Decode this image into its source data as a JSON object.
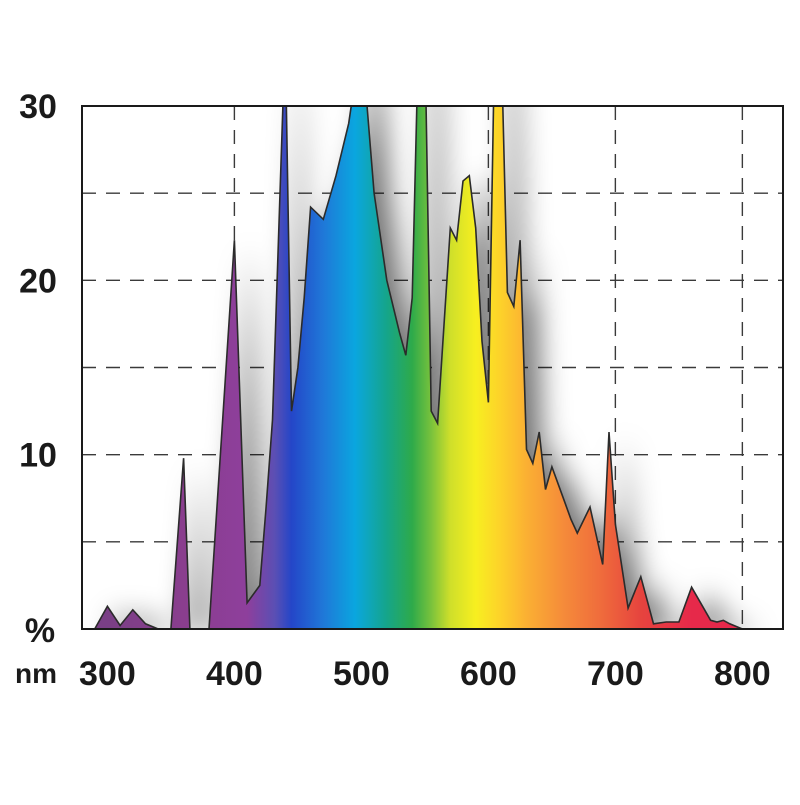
{
  "chart_data": {
    "type": "area",
    "title": "",
    "xlabel": "",
    "ylabel": "",
    "y_unit_label": "%",
    "x_unit_label": "nm",
    "xlim": [
      280,
      832
    ],
    "ylim": [
      0,
      30
    ],
    "x_ticks": [
      300,
      400,
      500,
      600,
      700,
      800
    ],
    "y_ticks": [
      10,
      20,
      30
    ],
    "grid": true,
    "legend": "none",
    "series": [
      {
        "x": [
          280,
          290,
          300,
          310,
          320,
          330,
          340,
          350,
          360,
          365,
          370,
          380,
          400,
          410,
          420,
          425,
          430,
          440,
          445,
          450,
          455,
          460,
          470,
          480,
          490,
          500,
          510,
          520,
          530,
          535,
          540,
          545,
          550,
          555,
          560,
          570,
          575,
          580,
          585,
          590,
          595,
          600,
          605,
          610,
          615,
          620,
          625,
          630,
          635,
          640,
          645,
          650,
          660,
          665,
          670,
          680,
          690,
          695,
          700,
          710,
          720,
          730,
          740,
          750,
          760,
          775,
          780,
          785,
          790,
          800,
          830
        ],
        "y": [
          0,
          0,
          1.3,
          0.2,
          1.1,
          0.3,
          0,
          0,
          9.8,
          0,
          0,
          0,
          22.3,
          1.5,
          2.5,
          7,
          12,
          34,
          12.5,
          15,
          19,
          24.2,
          23.5,
          26,
          29,
          34,
          25,
          20,
          17,
          15.7,
          19,
          34,
          34,
          12.5,
          11.8,
          23,
          22.3,
          25.7,
          26,
          23,
          16.5,
          13,
          34,
          34,
          19.3,
          18.5,
          22.3,
          10.3,
          9.5,
          11.3,
          8,
          9.3,
          7.3,
          6.3,
          5.5,
          7,
          3.7,
          11.3,
          6,
          1.2,
          3,
          0.3,
          0.4,
          0.4,
          2.4,
          0.5,
          0.4,
          0.5,
          0.3,
          0,
          0
        ]
      }
    ],
    "colors": {
      "gradient": [
        {
          "x": 300,
          "color": "#7a3f86"
        },
        {
          "x": 360,
          "color": "#8a3e8e"
        },
        {
          "x": 410,
          "color": "#8e3f9c"
        },
        {
          "x": 432,
          "color": "#5a4fb4"
        },
        {
          "x": 445,
          "color": "#2446c8"
        },
        {
          "x": 470,
          "color": "#1f78d8"
        },
        {
          "x": 495,
          "color": "#0aa6df"
        },
        {
          "x": 520,
          "color": "#15a58a"
        },
        {
          "x": 540,
          "color": "#2eaa4a"
        },
        {
          "x": 555,
          "color": "#79c23c"
        },
        {
          "x": 570,
          "color": "#cfdf2a"
        },
        {
          "x": 590,
          "color": "#f7ef20"
        },
        {
          "x": 610,
          "color": "#fdd12a"
        },
        {
          "x": 630,
          "color": "#fbb033"
        },
        {
          "x": 660,
          "color": "#f58a3a"
        },
        {
          "x": 690,
          "color": "#ef6a3c"
        },
        {
          "x": 720,
          "color": "#e6443e"
        },
        {
          "x": 760,
          "color": "#e6294a"
        },
        {
          "x": 830,
          "color": "#e5284c"
        }
      ],
      "outline": "#2b2b2b",
      "frame": "#1a1a1a",
      "grid": "#3a3a3a",
      "shadow": "#000000"
    }
  }
}
